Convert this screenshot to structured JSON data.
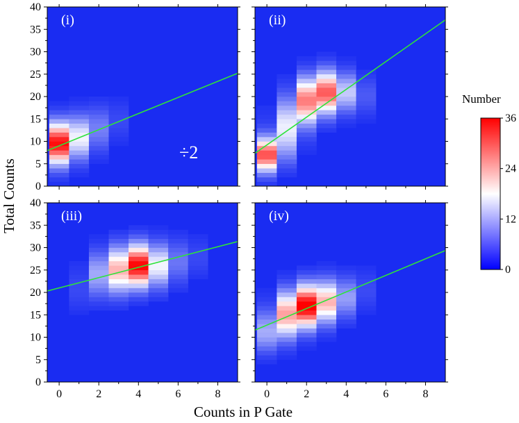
{
  "chart_data": {
    "type": "heatmap",
    "title": "",
    "xlabel": "Counts in P Gate",
    "ylabel": "Total Counts",
    "xlim": [
      -0.6,
      9.0
    ],
    "ylim": [
      0,
      40
    ],
    "x_ticks": [
      "0",
      "2",
      "4",
      "6",
      "8"
    ],
    "y_ticks": [
      "0",
      "5",
      "10",
      "15",
      "20",
      "25",
      "30",
      "35",
      "40"
    ],
    "colorbar": {
      "title": "Number",
      "min": 0,
      "max": 36,
      "ticks": [
        "0",
        "12",
        "24",
        "36"
      ],
      "colors": [
        "#0000ff",
        "#ffffff",
        "#ff0000"
      ]
    },
    "background_color": "#1a2cf2",
    "fit_line_color": "#2ee33a",
    "panels": [
      {
        "label": "(i)",
        "annotation": "÷2",
        "fit_line": {
          "intercept": 9.0,
          "slope": 1.8
        },
        "clusters": [
          {
            "x": 0,
            "y": 9.5,
            "sx": 0.45,
            "sy": 3.2,
            "amp": 34
          },
          {
            "x": 1,
            "y": 11,
            "sx": 0.45,
            "sy": 3.3,
            "amp": 14
          },
          {
            "x": 2,
            "y": 13,
            "sx": 0.45,
            "sy": 3.3,
            "amp": 6
          },
          {
            "x": 3,
            "y": 15,
            "sx": 0.45,
            "sy": 3.0,
            "amp": 2
          }
        ]
      },
      {
        "label": "(ii)",
        "annotation": "",
        "fit_line": {
          "intercept": 9.2,
          "slope": 3.1
        },
        "clusters": [
          {
            "x": 0,
            "y": 7,
            "sx": 0.45,
            "sy": 2.6,
            "amp": 30
          },
          {
            "x": 1,
            "y": 13,
            "sx": 0.45,
            "sy": 4.0,
            "amp": 16
          },
          {
            "x": 2,
            "y": 19,
            "sx": 0.45,
            "sy": 3.5,
            "amp": 25
          },
          {
            "x": 3,
            "y": 21,
            "sx": 0.45,
            "sy": 3.2,
            "amp": 27
          },
          {
            "x": 4,
            "y": 21,
            "sx": 0.45,
            "sy": 3.0,
            "amp": 11
          },
          {
            "x": 5,
            "y": 20,
            "sx": 0.45,
            "sy": 3.0,
            "amp": 3
          }
        ]
      },
      {
        "label": "(iii)",
        "annotation": "",
        "fit_line": {
          "intercept": 21.0,
          "slope": 1.15
        },
        "clusters": [
          {
            "x": 1,
            "y": 20,
            "sx": 0.45,
            "sy": 3.0,
            "amp": 2
          },
          {
            "x": 2,
            "y": 24,
            "sx": 0.45,
            "sy": 3.5,
            "amp": 9
          },
          {
            "x": 3,
            "y": 25,
            "sx": 0.45,
            "sy": 3.5,
            "amp": 20
          },
          {
            "x": 4,
            "y": 26,
            "sx": 0.45,
            "sy": 3.2,
            "amp": 33
          },
          {
            "x": 5,
            "y": 26,
            "sx": 0.45,
            "sy": 3.3,
            "amp": 14
          },
          {
            "x": 6,
            "y": 27,
            "sx": 0.45,
            "sy": 3.3,
            "amp": 5
          },
          {
            "x": 7,
            "y": 28,
            "sx": 0.45,
            "sy": 3.0,
            "amp": 2
          }
        ]
      },
      {
        "label": "(iv)",
        "annotation": "",
        "fit_line": {
          "intercept": 12.7,
          "slope": 1.85
        },
        "clusters": [
          {
            "x": 0,
            "y": 11,
            "sx": 0.45,
            "sy": 3.0,
            "amp": 10
          },
          {
            "x": 1,
            "y": 15,
            "sx": 0.45,
            "sy": 3.5,
            "amp": 22
          },
          {
            "x": 2,
            "y": 17,
            "sx": 0.45,
            "sy": 3.2,
            "amp": 34
          },
          {
            "x": 3,
            "y": 18,
            "sx": 0.45,
            "sy": 3.2,
            "amp": 20
          },
          {
            "x": 4,
            "y": 19,
            "sx": 0.45,
            "sy": 3.0,
            "amp": 8
          },
          {
            "x": 5,
            "y": 21,
            "sx": 0.45,
            "sy": 3.0,
            "amp": 2
          }
        ]
      }
    ]
  }
}
